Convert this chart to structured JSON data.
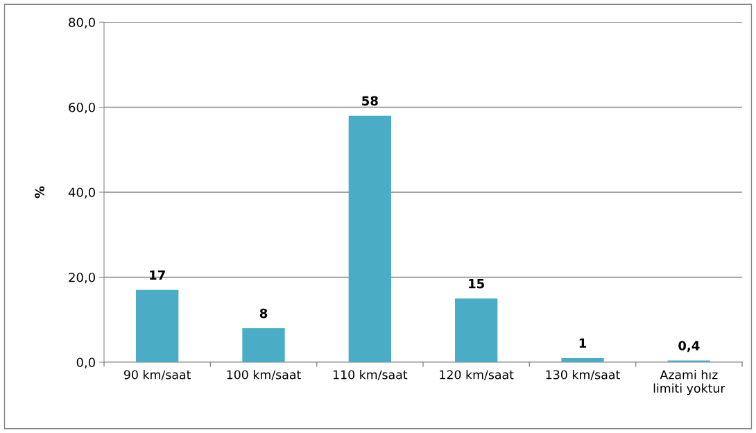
{
  "chart_data": {
    "type": "bar",
    "ylabel": "%",
    "categories": [
      "90 km/saat",
      "100 km/saat",
      "110 km/saat",
      "120 km/saat",
      "130 km/saat",
      "Azami hız\nlimiti yoktur"
    ],
    "values": [
      17,
      8,
      58,
      15,
      1,
      0.4
    ],
    "value_labels": [
      "17",
      "8",
      "58",
      "15",
      "1",
      "0,4"
    ],
    "color": "#4bacc6",
    "ylim": [
      0,
      80
    ],
    "yticks": [
      {
        "value": 0,
        "label": "0,0"
      },
      {
        "value": 20,
        "label": "20,0"
      },
      {
        "value": 40,
        "label": "40,0"
      },
      {
        "value": 60,
        "label": "60,0"
      },
      {
        "value": 80,
        "label": "80,0"
      }
    ],
    "grid": "y",
    "legend": false
  }
}
